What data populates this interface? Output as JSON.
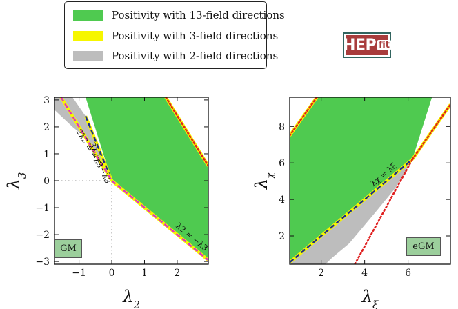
{
  "legend": {
    "items": [
      {
        "label": "Positivity with 13-field directions",
        "color": "#4fca50"
      },
      {
        "label": "Positivity with 3-field directions",
        "color": "#f6f600"
      },
      {
        "label": "Positivity with 2-field directions",
        "color": "#bdbdbd"
      }
    ]
  },
  "logo": {
    "main": "HEP",
    "sub": "fit"
  },
  "chart_data": [
    {
      "type": "area",
      "title": "",
      "xlabel": "λ2",
      "ylabel": "λ3",
      "xlim": [
        -1.75,
        2.95
      ],
      "ylim": [
        -3.1,
        3.1
      ],
      "xticks": [
        -1,
        0,
        1,
        2
      ],
      "yticks": [
        -3,
        -2,
        -1,
        0,
        1,
        2,
        3
      ],
      "badge": "GM",
      "regions": [
        {
          "name": "2-field",
          "color": "#bdbdbd",
          "x": [
            -1.75,
            -1.2,
            -0.8,
            0
          ],
          "y_lower": [
            2.63,
            2.0,
            1.6,
            0
          ],
          "y_upper": [
            3.1,
            3.1,
            2.4,
            0
          ]
        },
        {
          "name": "13-field",
          "color": "#4fca50",
          "polygon": [
            [
              -0.8,
              3.1
            ],
            [
              1.65,
              3.1
            ],
            [
              2.95,
              0.55
            ],
            [
              2.95,
              -2.95
            ],
            [
              0,
              0
            ]
          ]
        }
      ],
      "boundary_lines": [
        {
          "label": "3λ2 = −λ3",
          "x": [
            -0.8,
            0
          ],
          "y": [
            2.4,
            0
          ],
          "style": "navy-on-yellow"
        },
        {
          "label": "2λ2 = −λ3",
          "x": [
            -1.55,
            0
          ],
          "y": [
            3.1,
            0
          ],
          "style": "magenta-on-yellow"
        },
        {
          "label": "λ2 = −λ3",
          "x": [
            0,
            2.95
          ],
          "y": [
            0,
            -2.95
          ],
          "style": "magenta-on-yellow"
        },
        {
          "label": "",
          "x": [
            1.65,
            2.95
          ],
          "y": [
            3.1,
            0.55
          ],
          "style": "red-dotted-on-yellow"
        }
      ]
    },
    {
      "type": "area",
      "title": "",
      "xlabel": "λξ",
      "ylabel": "λχ",
      "xlim": [
        0.55,
        7.95
      ],
      "ylim": [
        0.45,
        9.6
      ],
      "xticks": [
        2,
        4,
        6
      ],
      "yticks": [
        2,
        4,
        6,
        8
      ],
      "badge": "eGM",
      "regions": [
        {
          "name": "2-field",
          "color": "#bdbdbd",
          "polygon": [
            [
              0.6,
              0.6
            ],
            [
              6.2,
              6.2
            ],
            [
              5.4,
              4.6
            ],
            [
              4.5,
              3.3
            ],
            [
              3.3,
              1.6
            ],
            [
              2.5,
              0.8
            ],
            [
              2.2,
              0.45
            ],
            [
              0.6,
              0.45
            ]
          ]
        },
        {
          "name": "13-field",
          "color": "#4fca50",
          "polygon": [
            [
              0.55,
              0.55
            ],
            [
              0.55,
              7.5
            ],
            [
              1.8,
              9.6
            ],
            [
              7.1,
              9.6
            ],
            [
              6.2,
              6.2
            ]
          ]
        }
      ],
      "boundary_lines": [
        {
          "label": "λχ = λξ",
          "x": [
            0.55,
            6.2
          ],
          "y": [
            0.55,
            6.2
          ],
          "style": "navy-on-yellow"
        },
        {
          "label": "",
          "x": [
            0.55,
            1.8
          ],
          "y": [
            7.5,
            9.6
          ],
          "style": "red-dotted-on-yellow"
        },
        {
          "label": "",
          "x": [
            6.2,
            7.95
          ],
          "y": [
            6.2,
            9.2
          ],
          "style": "red-dotted-on-yellow"
        },
        {
          "label": "",
          "x": [
            3.55,
            6.2
          ],
          "y": [
            0.45,
            6.2
          ],
          "style": "red-dotted"
        }
      ]
    }
  ]
}
